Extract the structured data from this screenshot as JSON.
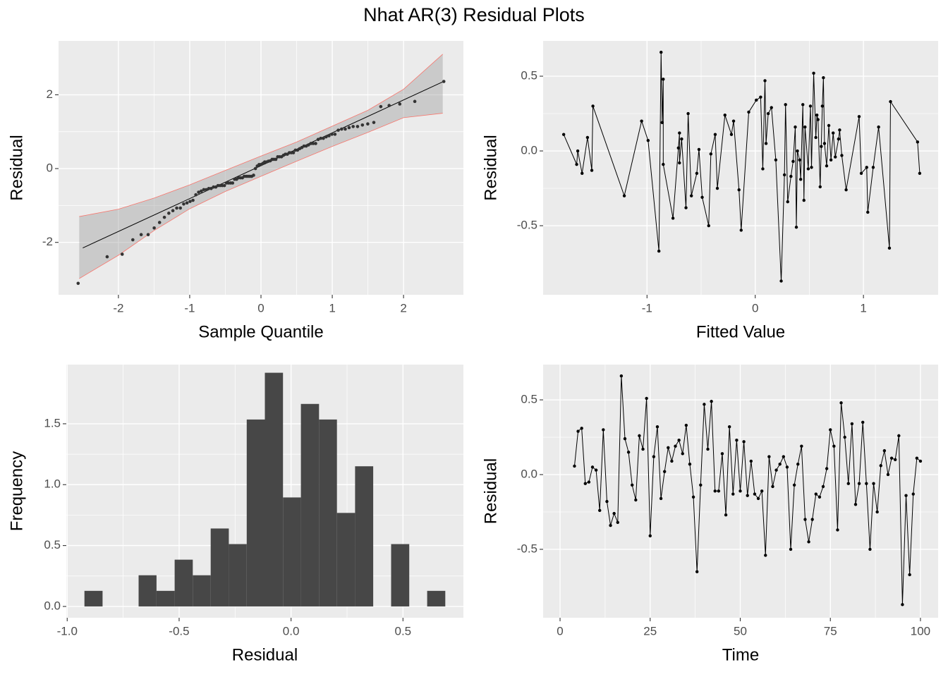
{
  "title": "Nhat AR(3) Residual Plots",
  "chart_data": [
    {
      "type": "qq",
      "xlabel": "Sample Quantile",
      "ylabel": "Residual",
      "xlim": [
        -2.84,
        2.84
      ],
      "ylim": [
        -3.42,
        3.46
      ],
      "xticks": [
        -2,
        -1,
        0,
        1,
        2
      ],
      "yticks": [
        -2,
        0,
        2
      ],
      "x": [
        -2.565,
        -2.158,
        -1.947,
        -1.798,
        -1.681,
        -1.583,
        -1.498,
        -1.423,
        -1.355,
        -1.293,
        -1.236,
        -1.182,
        -1.131,
        -1.084,
        -1.038,
        -0.995,
        -0.954,
        -0.914,
        -0.875,
        -0.838,
        -0.802,
        -0.767,
        -0.732,
        -0.699,
        -0.666,
        -0.634,
        -0.603,
        -0.573,
        -0.543,
        -0.513,
        -0.483,
        -0.455,
        -0.426,
        -0.398,
        -0.37,
        -0.342,
        -0.315,
        -0.288,
        -0.261,
        -0.235,
        -0.208,
        -0.182,
        -0.156,
        -0.13,
        -0.104,
        -0.078,
        -0.052,
        -0.026,
        0,
        0.026,
        0.052,
        0.078,
        0.104,
        0.13,
        0.156,
        0.182,
        0.208,
        0.235,
        0.261,
        0.288,
        0.315,
        0.342,
        0.37,
        0.398,
        0.426,
        0.455,
        0.483,
        0.513,
        0.543,
        0.573,
        0.603,
        0.634,
        0.666,
        0.699,
        0.732,
        0.767,
        0.802,
        0.838,
        0.875,
        0.914,
        0.954,
        0.995,
        1.038,
        1.084,
        1.131,
        1.182,
        1.236,
        1.293,
        1.355,
        1.423,
        1.498,
        1.583,
        1.681,
        1.798,
        1.947,
        2.158,
        2.565
      ],
      "y": [
        -3.11,
        -2.39,
        -2.32,
        -1.93,
        -1.79,
        -1.79,
        -1.61,
        -1.46,
        -1.32,
        -1.21,
        -1.14,
        -1.07,
        -1.07,
        -0.96,
        -0.93,
        -0.89,
        -0.86,
        -0.71,
        -0.64,
        -0.61,
        -0.57,
        -0.57,
        -0.54,
        -0.54,
        -0.5,
        -0.5,
        -0.46,
        -0.46,
        -0.46,
        -0.46,
        -0.39,
        -0.39,
        -0.39,
        -0.39,
        -0.29,
        -0.29,
        -0.25,
        -0.25,
        -0.25,
        -0.21,
        -0.21,
        -0.21,
        -0.21,
        -0.21,
        -0.18,
        0,
        0.07,
        0.11,
        0.11,
        0.14,
        0.18,
        0.18,
        0.2,
        0.21,
        0.25,
        0.25,
        0.25,
        0.32,
        0.32,
        0.32,
        0.36,
        0.39,
        0.39,
        0.43,
        0.43,
        0.43,
        0.5,
        0.5,
        0.54,
        0.57,
        0.61,
        0.61,
        0.64,
        0.68,
        0.68,
        0.68,
        0.79,
        0.82,
        0.82,
        0.86,
        0.89,
        0.93,
        0.93,
        1.04,
        1.07,
        1.07,
        1.11,
        1.14,
        1.14,
        1.18,
        1.21,
        1.25,
        1.68,
        1.71,
        1.75,
        1.82,
        2.36
      ],
      "reference_line": {
        "x": [
          -2.5,
          2.55
        ],
        "y": [
          -2.15,
          2.35
        ]
      },
      "band": {
        "x": [
          -2.55,
          -2,
          -1.5,
          -1,
          -0.5,
          0,
          0.5,
          1,
          1.5,
          2,
          2.55
        ],
        "upper": [
          -1.3,
          -1.1,
          -0.8,
          -0.44,
          -0.05,
          0.34,
          0.72,
          1.15,
          1.58,
          2.15,
          3.1
        ],
        "lower": [
          -2.98,
          -2.35,
          -1.68,
          -1.09,
          -0.62,
          -0.21,
          0.2,
          0.6,
          0.98,
          1.38,
          1.5
        ]
      },
      "color": "#333333",
      "band_color": "#f8766d"
    },
    {
      "type": "line",
      "xlabel": "Fitted Value",
      "ylabel": "Residual",
      "xlim": [
        -1.96,
        1.69
      ],
      "ylim": [
        -0.962,
        0.736
      ],
      "xticks": [
        -1,
        0,
        1
      ],
      "yticks": [
        -0.5,
        {
          "value": 0,
          "label": "0.0"
        },
        0.5
      ],
      "x": [
        -1.77,
        -1.65,
        -1.64,
        -1.6,
        -1.55,
        -1.51,
        -1.5,
        -1.21,
        -1.05,
        -0.99,
        -0.89,
        -0.87,
        -0.86,
        -0.85,
        -0.85,
        -0.76,
        -0.71,
        -0.7,
        -0.7,
        -0.68,
        -0.64,
        -0.62,
        -0.59,
        -0.54,
        -0.52,
        -0.49,
        -0.43,
        -0.41,
        -0.37,
        -0.35,
        -0.28,
        -0.22,
        -0.2,
        -0.15,
        -0.13,
        -0.06,
        0.01,
        0.05,
        0.07,
        0.09,
        0.1,
        0.12,
        0.15,
        0.19,
        0.24,
        0.27,
        0.28,
        0.3,
        0.33,
        0.35,
        0.37,
        0.38,
        0.39,
        0.41,
        0.42,
        0.44,
        0.45,
        0.46,
        0.49,
        0.51,
        0.52,
        0.54,
        0.56,
        0.57,
        0.58,
        0.6,
        0.61,
        0.62,
        0.63,
        0.64,
        0.66,
        0.68,
        0.7,
        0.72,
        0.74,
        0.77,
        0.78,
        0.8,
        0.84,
        0.96,
        0.98,
        1.03,
        1.04,
        1.09,
        1.14,
        1.24,
        1.25,
        1.5,
        1.52
      ],
      "y": [
        0.11,
        -0.09,
        0,
        -0.15,
        0.09,
        -0.13,
        0.3,
        -0.3,
        0.2,
        0.07,
        -0.67,
        0.66,
        0.19,
        0.48,
        -0.09,
        -0.45,
        0.02,
        0.12,
        -0.08,
        0.08,
        -0.38,
        0.25,
        -0.3,
        -0.15,
        0.01,
        -0.31,
        -0.5,
        -0.02,
        0.11,
        -0.25,
        0.24,
        0.11,
        0.2,
        -0.26,
        -0.53,
        0.26,
        0.34,
        0.36,
        -0.12,
        0.47,
        0.05,
        0.25,
        0.29,
        -0.06,
        -0.87,
        -0.16,
        0.31,
        -0.34,
        -0.17,
        -0.07,
        0.16,
        -0.51,
        0,
        -0.06,
        -0.19,
        0.31,
        -0.33,
        0.16,
        -0.12,
        0.3,
        -0.11,
        0.52,
        0.09,
        0.24,
        0.21,
        -0.24,
        0.03,
        0.3,
        0.49,
        0.05,
        -0.1,
        0.17,
        -0.06,
        0.12,
        -0.04,
        0.08,
        0.14,
        -0.03,
        -0.26,
        0.23,
        -0.15,
        -0.11,
        -0.41,
        -0.11,
        0.16,
        -0.65,
        0.33,
        0.06,
        -0.15
      ],
      "color": "#000000"
    },
    {
      "type": "histogram",
      "xlabel": "Residual",
      "ylabel": "Frequency",
      "xlim": [
        -1.004,
        0.77
      ],
      "ylim": [
        -0.093,
        1.986
      ],
      "xticks": [
        {
          "value": -1,
          "label": "-1.0"
        },
        -0.5,
        {
          "value": 0,
          "label": "0.0"
        },
        0.5
      ],
      "yticks": [
        {
          "value": 0,
          "label": "0.0"
        },
        0.5,
        {
          "value": 1,
          "label": "1.0"
        },
        1.5
      ],
      "bins": [
        -0.923,
        -0.842,
        -0.762,
        -0.681,
        -0.601,
        -0.52,
        -0.439,
        -0.359,
        -0.278,
        -0.198,
        -0.117,
        -0.036,
        0.044,
        0.125,
        0.205,
        0.286,
        0.367,
        0.447,
        0.528,
        0.608,
        0.689
      ],
      "values": [
        0.128,
        0,
        0,
        0.256,
        0.128,
        0.384,
        0.256,
        0.64,
        0.512,
        1.535,
        1.919,
        0.895,
        1.663,
        1.535,
        0.768,
        1.151,
        0,
        0.512,
        0,
        0.128
      ],
      "color": "#474747"
    },
    {
      "type": "line",
      "xlabel": "Time",
      "ylabel": "Residual",
      "xlim": [
        -4.7,
        104.9
      ],
      "ylim": [
        -0.958,
        0.736
      ],
      "xticks": [
        0,
        25,
        50,
        75,
        100
      ],
      "yticks": [
        -0.5,
        {
          "value": 0,
          "label": "0.0"
        },
        0.5
      ],
      "x": [
        4,
        5,
        6,
        7,
        8,
        9,
        10,
        11,
        12,
        13,
        14,
        15,
        16,
        17,
        18,
        19,
        20,
        21,
        22,
        23,
        24,
        25,
        26,
        27,
        28,
        29,
        30,
        31,
        32,
        33,
        34,
        35,
        36,
        37,
        38,
        39,
        40,
        41,
        42,
        43,
        44,
        45,
        46,
        47,
        48,
        49,
        50,
        51,
        52,
        53,
        54,
        55,
        56,
        57,
        58,
        59,
        60,
        61,
        62,
        63,
        64,
        65,
        66,
        67,
        68,
        69,
        70,
        71,
        72,
        73,
        74,
        75,
        76,
        77,
        78,
        79,
        80,
        81,
        82,
        83,
        84,
        85,
        86,
        87,
        88,
        89,
        90,
        91,
        92,
        93,
        94,
        95,
        96,
        97,
        98,
        99,
        100
      ],
      "y": [
        0.057,
        0.29,
        0.31,
        -0.06,
        -0.05,
        0.05,
        0.03,
        -0.24,
        0.3,
        -0.18,
        -0.34,
        -0.26,
        -0.32,
        0.66,
        0.24,
        0.15,
        -0.07,
        -0.17,
        0.26,
        0.17,
        0.51,
        -0.41,
        0.12,
        0.32,
        -0.16,
        0.02,
        0.18,
        0.09,
        0.19,
        0.23,
        0.14,
        0.33,
        0.07,
        -0.15,
        -0.65,
        -0.07,
        0.47,
        0.17,
        0.49,
        -0.11,
        -0.11,
        0.14,
        -0.27,
        0.32,
        -0.13,
        0.23,
        -0.11,
        0.22,
        -0.14,
        0.09,
        -0.13,
        -0.16,
        -0.11,
        -0.54,
        0.12,
        -0.08,
        0.03,
        0.07,
        0.12,
        0.05,
        -0.5,
        -0.07,
        0.07,
        0.19,
        -0.3,
        -0.45,
        -0.3,
        -0.13,
        -0.15,
        -0.08,
        0.04,
        0.3,
        0.19,
        -0.37,
        0.48,
        0.25,
        -0.06,
        0.34,
        -0.2,
        -0.06,
        0.35,
        -0.06,
        -0.5,
        -0.06,
        -0.25,
        0.06,
        0.16,
        0,
        0.11,
        0.1,
        0.26,
        -0.87,
        -0.14,
        -0.67,
        -0.13,
        0.11,
        0.09
      ],
      "color": "#000000"
    }
  ]
}
